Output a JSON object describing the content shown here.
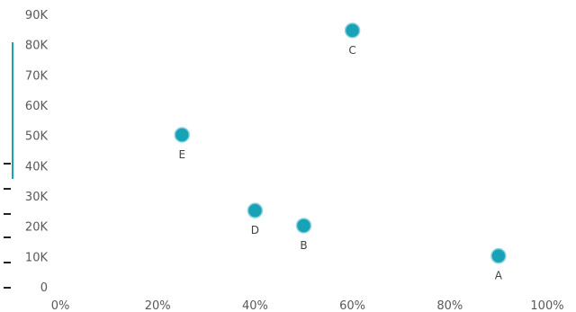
{
  "chart_data": {
    "type": "scatter",
    "title": "",
    "xlabel": "",
    "ylabel": "",
    "xlim": [
      0,
      100
    ],
    "ylim": [
      0,
      90000
    ],
    "x_ticks": [
      0,
      20,
      40,
      60,
      80,
      100
    ],
    "x_tick_labels": [
      "0%",
      "20%",
      "40%",
      "60%",
      "80%",
      "100%"
    ],
    "y_ticks": [
      0,
      10000,
      20000,
      30000,
      40000,
      50000,
      60000,
      70000,
      80000,
      90000
    ],
    "y_tick_labels": [
      "0",
      "10K",
      "20K",
      "30K",
      "40K",
      "50K",
      "60K",
      "70K",
      "80K",
      "90K"
    ],
    "grid": false,
    "marker_color": "#17a2b8",
    "marker_edge_color": "#8fd3dc",
    "points": [
      {
        "label": "A",
        "x": 90,
        "y": 10500
      },
      {
        "label": "B",
        "x": 50,
        "y": 20500
      },
      {
        "label": "C",
        "x": 60,
        "y": 85000
      },
      {
        "label": "D",
        "x": 40,
        "y": 25500
      },
      {
        "label": "E",
        "x": 25,
        "y": 50500
      }
    ]
  },
  "accent_color": "#1aa3b1"
}
